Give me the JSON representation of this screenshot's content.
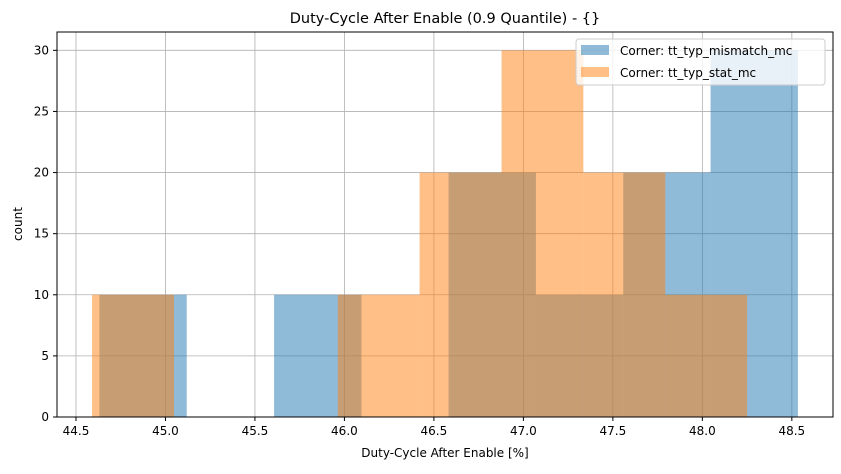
{
  "chart_data": {
    "type": "histogram",
    "title": "Duty-Cycle After Enable (0.9 Quantile) - {}",
    "xlabel": "Duty-Cycle After Enable [%]",
    "ylabel": "count",
    "xlim": [
      44.394,
      48.73
    ],
    "ylim": [
      0,
      31.5
    ],
    "xticks": [
      "44.5",
      "45.0",
      "45.5",
      "46.0",
      "46.5",
      "47.0",
      "47.5",
      "48.0",
      "48.5"
    ],
    "yticks": [
      "0",
      "5",
      "10",
      "15",
      "20",
      "25",
      "30"
    ],
    "grid": true,
    "legend_position": "top-right",
    "series": [
      {
        "name": "Corner: tt_typ_mismatch_mc",
        "color": "#1f77b4",
        "alpha": 0.5,
        "bin_edges": [
          44.631,
          45.119,
          45.607,
          46.095,
          46.582,
          47.07,
          47.558,
          48.046,
          48.534
        ],
        "counts": [
          10,
          0,
          10,
          0,
          20,
          10,
          20,
          30
        ]
      },
      {
        "name": "Corner: tt_typ_stat_mc",
        "color": "#ff7f0e",
        "alpha": 0.5,
        "bin_edges": [
          44.59,
          45.048,
          45.505,
          45.963,
          46.42,
          46.878,
          47.335,
          47.793,
          48.25
        ],
        "counts": [
          10,
          0,
          0,
          10,
          20,
          30,
          20,
          10
        ]
      }
    ]
  }
}
